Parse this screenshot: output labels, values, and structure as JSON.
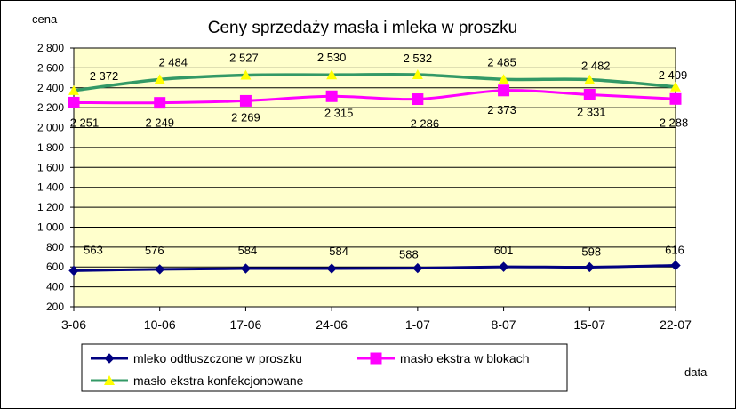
{
  "chart_data": {
    "type": "line",
    "title": "Ceny sprzedaży masła i mleka w proszku",
    "ylabel": "cena",
    "xlabel": "data",
    "categories": [
      "3-06",
      "10-06",
      "17-06",
      "24-06",
      "1-07",
      "8-07",
      "15-07",
      "22-07"
    ],
    "ylim": [
      200,
      2800
    ],
    "ytick_step": 200,
    "ytick_labels": [
      "200",
      "400",
      "600",
      "800",
      "1 000",
      "1 200",
      "1 400",
      "1 600",
      "1 800",
      "2 000",
      "2 200",
      "2 400",
      "2 600",
      "2 800"
    ],
    "grid": true,
    "plot_background": "#ffffcc",
    "legend_position": "bottom",
    "series": [
      {
        "name": "mleko odtłuszczone w proszku",
        "color": "#000080",
        "marker": "diamond",
        "values": [
          563,
          576,
          584,
          584,
          588,
          601,
          598,
          616
        ],
        "labels": [
          "563",
          "576",
          "584",
          "584",
          "588",
          "601",
          "598",
          "616"
        ]
      },
      {
        "name": "masło ekstra w blokach",
        "color": "#ff00ff",
        "marker": "square",
        "values": [
          2251,
          2249,
          2269,
          2315,
          2286,
          2373,
          2331,
          2288
        ],
        "labels": [
          "2 251",
          "2 249",
          "2 269",
          "2 315",
          "2 286",
          "2 373",
          "2 331",
          "2 288"
        ]
      },
      {
        "name": "masło ekstra konfekcjonowane",
        "color": "#339966",
        "marker_color": "#ffff00",
        "marker": "triangle",
        "values": [
          2372,
          2484,
          2527,
          2530,
          2532,
          2485,
          2482,
          2409
        ],
        "labels": [
          "2 372",
          "2 484",
          "2 527",
          "2 530",
          "2 532",
          "2 485",
          "2 482",
          "2 409"
        ]
      }
    ]
  }
}
